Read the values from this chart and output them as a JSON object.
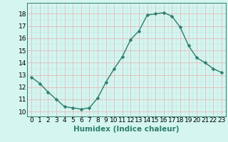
{
  "x": [
    0,
    1,
    2,
    3,
    4,
    5,
    6,
    7,
    8,
    9,
    10,
    11,
    12,
    13,
    14,
    15,
    16,
    17,
    18,
    19,
    20,
    21,
    22,
    23
  ],
  "y": [
    12.8,
    12.3,
    11.6,
    11.0,
    10.4,
    10.3,
    10.2,
    10.3,
    11.1,
    12.4,
    13.5,
    14.5,
    15.9,
    16.6,
    17.9,
    18.0,
    18.1,
    17.8,
    16.9,
    15.4,
    14.4,
    14.0,
    13.5,
    13.2
  ],
  "line_color": "#2e7d6e",
  "marker": "D",
  "marker_size": 2.5,
  "line_width": 1.0,
  "bg_color": "#d4f5f0",
  "grid_color_major": "#e8b0b0",
  "grid_color_minor": "#c0e8e2",
  "xlabel": "Humidex (Indice chaleur)",
  "xlabel_fontsize": 7.5,
  "xlabel_weight": "bold",
  "ylabel_ticks": [
    10,
    11,
    12,
    13,
    14,
    15,
    16,
    17,
    18
  ],
  "ylim": [
    9.6,
    18.9
  ],
  "xlim": [
    -0.5,
    23.5
  ],
  "tick_fontsize": 6.5
}
